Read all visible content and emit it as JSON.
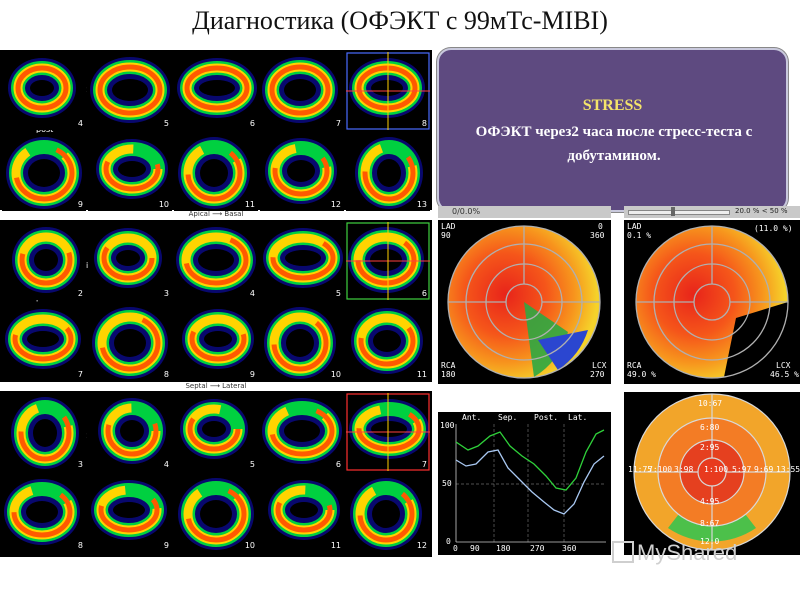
{
  "title": "Диагностика (ОФЭКТ с 99мТс-MIBI)",
  "sections": [
    {
      "top_labels": {
        "a": "ant",
        "b": "sep",
        "c": "lat",
        "d": "post"
      },
      "rows": [
        [
          "4",
          "5",
          "6",
          "7",
          "8"
        ],
        [
          "9",
          "10",
          "11",
          "12",
          "13"
        ]
      ],
      "axis_label": "Apical ⟶ Basal"
    },
    {
      "top_labels": {
        "a": "ant",
        "b": "",
        "c": "api",
        "d": "post"
      },
      "rows": [
        [
          "2",
          "3",
          "4",
          "5",
          "6"
        ],
        [
          "7",
          "8",
          "9",
          "10",
          "11"
        ]
      ],
      "axis_label": "Septal ⟶ Lateral"
    },
    {
      "top_labels": {
        "a": "api",
        "b": "sep",
        "c": "lat",
        "d": ""
      },
      "rows": [
        [
          "3",
          "4",
          "5",
          "6",
          "7"
        ],
        [
          "8",
          "9",
          "10",
          "11",
          "12"
        ]
      ],
      "axis_label": ""
    }
  ],
  "popup": {
    "title": "STRESS",
    "body": "ОФЭКТ через2 часа после стресс-теста с добутамином."
  },
  "controls": {
    "left_status": "0/0.0%",
    "right_status": "20.0 % < 50 %"
  },
  "polar_left": {
    "lad": "LAD",
    "lad_val": "90",
    "deg0": "0",
    "deg360": "360",
    "rca": "RCA",
    "rca_val": "180",
    "lcx": "LCX",
    "lcx_val": "270"
  },
  "polar_right": {
    "lad": "LAD",
    "lad_val": "0.1 %",
    "pct": "(11.0 %)",
    "rca": "RCA",
    "rca_val": "49.0 %",
    "lcx": "LCX",
    "lcx_val": "46.5 %"
  },
  "profile": {
    "top_labels": [
      "Ant.",
      "Sep.",
      "Post.",
      "Lat."
    ],
    "y_ticks": [
      "100",
      "50",
      "0"
    ],
    "x_ticks": [
      "0",
      "90",
      "180",
      "270",
      "360"
    ]
  },
  "bullseye": {
    "v_top": "10:67",
    "v_a": "6:80",
    "v_b": "2:95",
    "v_c": "7:100",
    "v_d": "3:98",
    "v_e": "1:100",
    "v_f": "5:97",
    "v_g": "9:69",
    "v_h": "11:75",
    "v_i": "13:55",
    "v_j": "4:95",
    "v_k": "8:67",
    "v_bottom": "12:0"
  },
  "watermark": "MyShared",
  "colors": {
    "popup_bg": "#5e4a80",
    "popup_title": "#f4e46a",
    "panel_bg": "#000000"
  }
}
